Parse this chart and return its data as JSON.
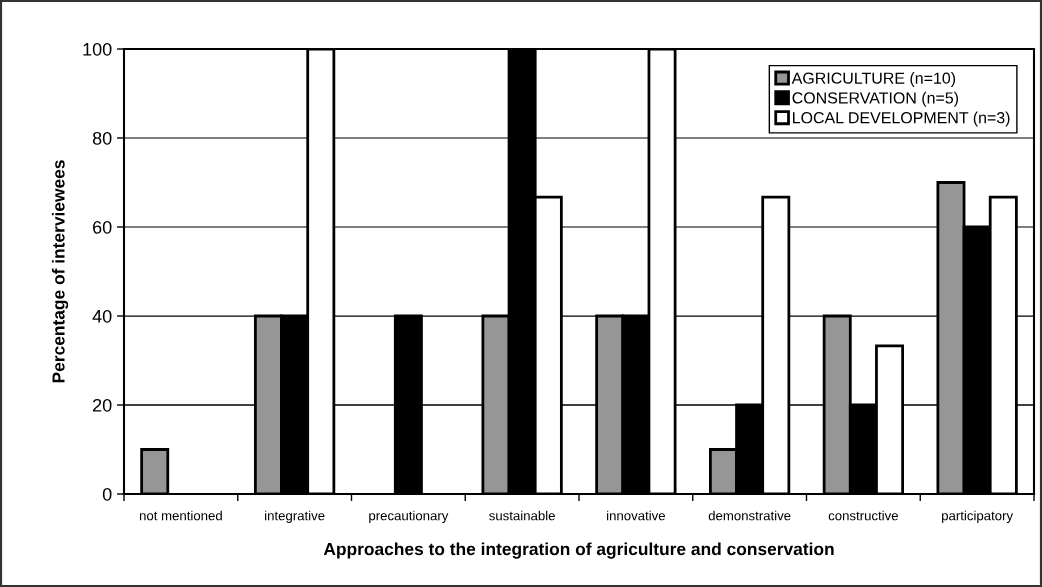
{
  "chart_data": {
    "type": "bar",
    "xlabel": "Approaches to the integration of agriculture and conservation",
    "ylabel": "Percentage of interviewees",
    "categories": [
      "not mentioned",
      "integrative",
      "precautionary",
      "sustainable",
      "innovative",
      "demonstrative",
      "constructive",
      "participatory"
    ],
    "series": [
      {
        "name": "AGRICULTURE (n=10)",
        "color": "#969696",
        "values": [
          10,
          40,
          0,
          40,
          40,
          10,
          40,
          70
        ]
      },
      {
        "name": "CONSERVATION (n=5)",
        "color": "#000000",
        "values": [
          0,
          40,
          40,
          100,
          40,
          20,
          20,
          60
        ]
      },
      {
        "name": "LOCAL DEVELOPMENT (n=3)",
        "color": "#ffffff",
        "values": [
          0,
          100,
          0,
          66.7,
          100,
          66.7,
          33.3,
          66.7
        ]
      }
    ],
    "ylim": [
      0,
      100
    ],
    "yticks": [
      0,
      20,
      40,
      60,
      80,
      100
    ],
    "grid": "y",
    "legend": "top right"
  }
}
